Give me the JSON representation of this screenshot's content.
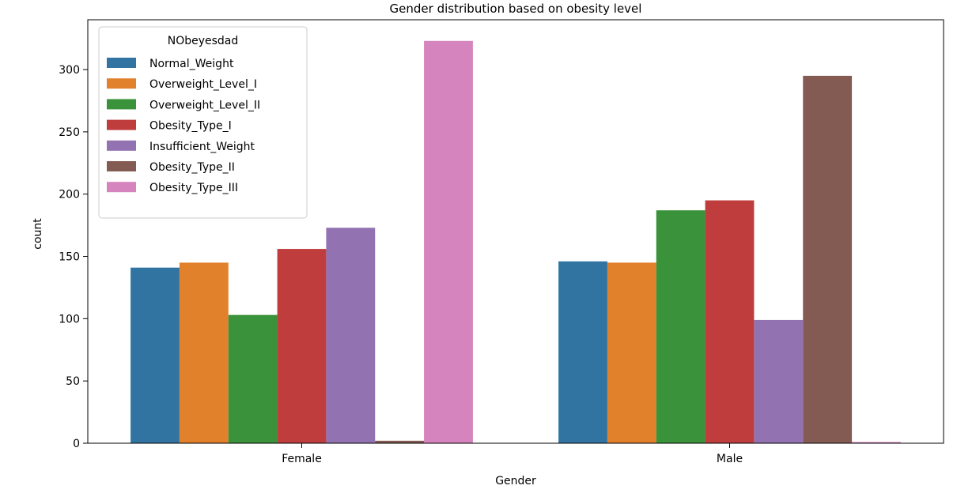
{
  "chart_data": {
    "type": "bar",
    "title": "Gender distribution based on obesity level",
    "xlabel": "Gender",
    "ylabel": "count",
    "categories": [
      "Female",
      "Male"
    ],
    "ylim": [
      0,
      340
    ],
    "yticks": [
      0,
      50,
      100,
      150,
      200,
      250,
      300
    ],
    "grid": false,
    "legend": {
      "title": "NObeyesdad",
      "placement": "top-left"
    },
    "series": [
      {
        "name": "Normal_Weight",
        "color": "#3274a1",
        "values": [
          141,
          146
        ]
      },
      {
        "name": "Overweight_Level_I",
        "color": "#e1812c",
        "values": [
          145,
          145
        ]
      },
      {
        "name": "Overweight_Level_II",
        "color": "#3a923a",
        "values": [
          103,
          187
        ]
      },
      {
        "name": "Obesity_Type_I",
        "color": "#c03d3e",
        "values": [
          156,
          195
        ]
      },
      {
        "name": "Insufficient_Weight",
        "color": "#9372b2",
        "values": [
          173,
          99
        ]
      },
      {
        "name": "Obesity_Type_II",
        "color": "#845b53",
        "values": [
          2,
          295
        ]
      },
      {
        "name": "Obesity_Type_III",
        "color": "#d684bd",
        "values": [
          323,
          1
        ]
      }
    ]
  }
}
